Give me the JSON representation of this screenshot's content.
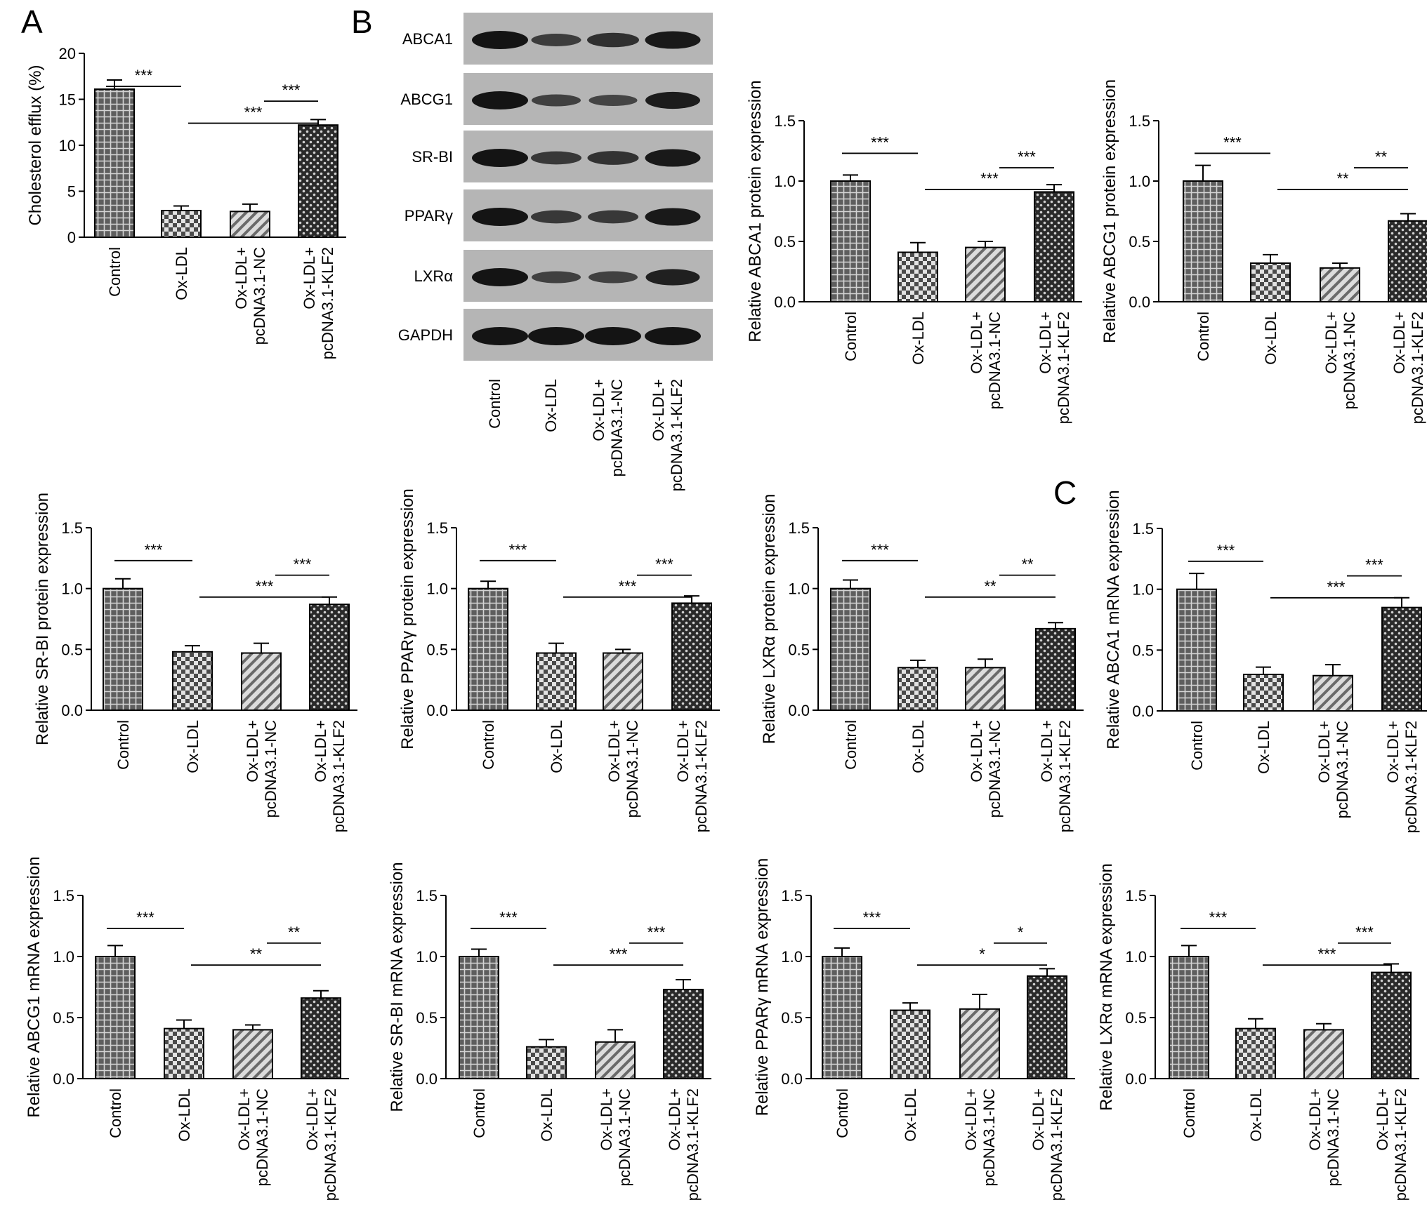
{
  "panel_letters": [
    "A",
    "B",
    "C"
  ],
  "categories": [
    [
      "Control"
    ],
    [
      "Ox-LDL"
    ],
    [
      "Ox-LDL+",
      "pcDNA3.1-NC"
    ],
    [
      "Ox-LDL+",
      "pcDNA3.1-KLF2"
    ]
  ],
  "bar_styles": [
    "grid",
    "checker",
    "diagonal",
    "dense-checker"
  ],
  "colors": {
    "bar_fill": "#5e5e5e",
    "pattern_line": "#d9d9d9",
    "axis": "#000000",
    "blot_bg": "#b5b5b5",
    "band": "#141414"
  },
  "blot": {
    "rows": [
      "ABCA1",
      "ABCG1",
      "SR-BI",
      "PPARγ",
      "LXRα",
      "GAPDH"
    ],
    "intensities": [
      [
        1.0,
        0.55,
        0.7,
        0.95
      ],
      [
        1.0,
        0.5,
        0.45,
        0.9
      ],
      [
        1.0,
        0.6,
        0.65,
        0.95
      ],
      [
        1.0,
        0.6,
        0.6,
        0.95
      ],
      [
        1.0,
        0.5,
        0.5,
        0.85
      ],
      [
        1.0,
        1.0,
        1.0,
        1.0
      ]
    ]
  },
  "chart_data": [
    {
      "id": "efflux",
      "type": "bar",
      "panel": "A",
      "ylabel": "Cholesterol efflux (%)",
      "ylim": [
        0,
        20
      ],
      "yticks": [
        "0",
        "5",
        "10",
        "15",
        "20"
      ],
      "values": [
        16.1,
        2.9,
        2.8,
        12.2
      ],
      "errors": [
        1.0,
        0.5,
        0.8,
        0.6
      ],
      "significance": [
        {
          "from": 0,
          "to": 1,
          "label": "***"
        },
        {
          "from": 1,
          "to": 3,
          "label": "***"
        },
        {
          "from": 2,
          "to": 3,
          "label": "***"
        }
      ]
    },
    {
      "id": "abca1-protein",
      "type": "bar",
      "ylabel": "Relative ABCA1 protein expression",
      "ylim": [
        0,
        1.5
      ],
      "yticks": [
        "0.0",
        "0.5",
        "1.0",
        "1.5"
      ],
      "values": [
        1.0,
        0.41,
        0.45,
        0.91
      ],
      "errors": [
        0.05,
        0.08,
        0.05,
        0.06
      ],
      "significance": [
        {
          "from": 0,
          "to": 1,
          "label": "***"
        },
        {
          "from": 1,
          "to": 3,
          "label": "***"
        },
        {
          "from": 2,
          "to": 3,
          "label": "***"
        }
      ]
    },
    {
      "id": "abcg1-protein",
      "type": "bar",
      "ylabel": "Relative ABCG1 protein expression",
      "ylim": [
        0,
        1.5
      ],
      "yticks": [
        "0.0",
        "0.5",
        "1.0",
        "1.5"
      ],
      "values": [
        1.0,
        0.32,
        0.28,
        0.67
      ],
      "errors": [
        0.13,
        0.07,
        0.04,
        0.06
      ],
      "significance": [
        {
          "from": 0,
          "to": 1,
          "label": "***"
        },
        {
          "from": 1,
          "to": 3,
          "label": "**"
        },
        {
          "from": 2,
          "to": 3,
          "label": "**"
        }
      ]
    },
    {
      "id": "srbi-protein",
      "type": "bar",
      "ylabel": "Relative SR-BI protein expression",
      "ylim": [
        0,
        1.5
      ],
      "yticks": [
        "0.0",
        "0.5",
        "1.0",
        "1.5"
      ],
      "values": [
        1.0,
        0.48,
        0.47,
        0.87
      ],
      "errors": [
        0.08,
        0.05,
        0.08,
        0.06
      ],
      "significance": [
        {
          "from": 0,
          "to": 1,
          "label": "***"
        },
        {
          "from": 1,
          "to": 3,
          "label": "***"
        },
        {
          "from": 2,
          "to": 3,
          "label": "***"
        }
      ]
    },
    {
      "id": "ppar-protein",
      "type": "bar",
      "ylabel": "Relative PPARγ protein expression",
      "ylim": [
        0,
        1.5
      ],
      "yticks": [
        "0.0",
        "0.5",
        "1.0",
        "1.5"
      ],
      "values": [
        1.0,
        0.47,
        0.47,
        0.88
      ],
      "errors": [
        0.06,
        0.08,
        0.03,
        0.06
      ],
      "significance": [
        {
          "from": 0,
          "to": 1,
          "label": "***"
        },
        {
          "from": 1,
          "to": 3,
          "label": "***"
        },
        {
          "from": 2,
          "to": 3,
          "label": "***"
        }
      ]
    },
    {
      "id": "lxr-protein",
      "type": "bar",
      "ylabel": "Relative LXRα protein expression",
      "ylim": [
        0,
        1.5
      ],
      "yticks": [
        "0.0",
        "0.5",
        "1.0",
        "1.5"
      ],
      "values": [
        1.0,
        0.35,
        0.35,
        0.67
      ],
      "errors": [
        0.07,
        0.06,
        0.07,
        0.05
      ],
      "significance": [
        {
          "from": 0,
          "to": 1,
          "label": "***"
        },
        {
          "from": 1,
          "to": 3,
          "label": "**"
        },
        {
          "from": 2,
          "to": 3,
          "label": "**"
        }
      ]
    },
    {
      "id": "abca1-mrna",
      "type": "bar",
      "panel": "C",
      "ylabel": "Relative ABCA1 mRNA expression",
      "ylim": [
        0,
        1.5
      ],
      "yticks": [
        "0.0",
        "0.5",
        "1.0",
        "1.5"
      ],
      "values": [
        1.0,
        0.3,
        0.29,
        0.85
      ],
      "errors": [
        0.13,
        0.06,
        0.09,
        0.08
      ],
      "significance": [
        {
          "from": 0,
          "to": 1,
          "label": "***"
        },
        {
          "from": 1,
          "to": 3,
          "label": "***"
        },
        {
          "from": 2,
          "to": 3,
          "label": "***"
        }
      ]
    },
    {
      "id": "abcg1-mrna",
      "type": "bar",
      "ylabel": "Relative ABCG1 mRNA expression",
      "ylim": [
        0,
        1.5
      ],
      "yticks": [
        "0.0",
        "0.5",
        "1.0",
        "1.5"
      ],
      "values": [
        1.0,
        0.41,
        0.4,
        0.66
      ],
      "errors": [
        0.09,
        0.07,
        0.04,
        0.06
      ],
      "significance": [
        {
          "from": 0,
          "to": 1,
          "label": "***"
        },
        {
          "from": 1,
          "to": 3,
          "label": "**"
        },
        {
          "from": 2,
          "to": 3,
          "label": "**"
        }
      ]
    },
    {
      "id": "srbi-mrna",
      "type": "bar",
      "ylabel": "Relative SR-BI mRNA expression",
      "ylim": [
        0,
        1.5
      ],
      "yticks": [
        "0.0",
        "0.5",
        "1.0",
        "1.5"
      ],
      "values": [
        1.0,
        0.26,
        0.3,
        0.73
      ],
      "errors": [
        0.06,
        0.06,
        0.1,
        0.08
      ],
      "significance": [
        {
          "from": 0,
          "to": 1,
          "label": "***"
        },
        {
          "from": 1,
          "to": 3,
          "label": "***"
        },
        {
          "from": 2,
          "to": 3,
          "label": "***"
        }
      ]
    },
    {
      "id": "ppar-mrna",
      "type": "bar",
      "ylabel": "Relative PPARγ mRNA expression",
      "ylim": [
        0,
        1.5
      ],
      "yticks": [
        "0.0",
        "0.5",
        "1.0",
        "1.5"
      ],
      "values": [
        1.0,
        0.56,
        0.57,
        0.84
      ],
      "errors": [
        0.07,
        0.06,
        0.12,
        0.06
      ],
      "significance": [
        {
          "from": 0,
          "to": 1,
          "label": "***"
        },
        {
          "from": 1,
          "to": 3,
          "label": "*"
        },
        {
          "from": 2,
          "to": 3,
          "label": "*"
        }
      ]
    },
    {
      "id": "lxr-mrna",
      "type": "bar",
      "ylabel": "Relative LXRα mRNA expression",
      "ylim": [
        0,
        1.5
      ],
      "yticks": [
        "0.0",
        "0.5",
        "1.0",
        "1.5"
      ],
      "values": [
        1.0,
        0.41,
        0.4,
        0.87
      ],
      "errors": [
        0.09,
        0.08,
        0.05,
        0.07
      ],
      "significance": [
        {
          "from": 0,
          "to": 1,
          "label": "***"
        },
        {
          "from": 1,
          "to": 3,
          "label": "***"
        },
        {
          "from": 2,
          "to": 3,
          "label": "***"
        }
      ]
    }
  ]
}
